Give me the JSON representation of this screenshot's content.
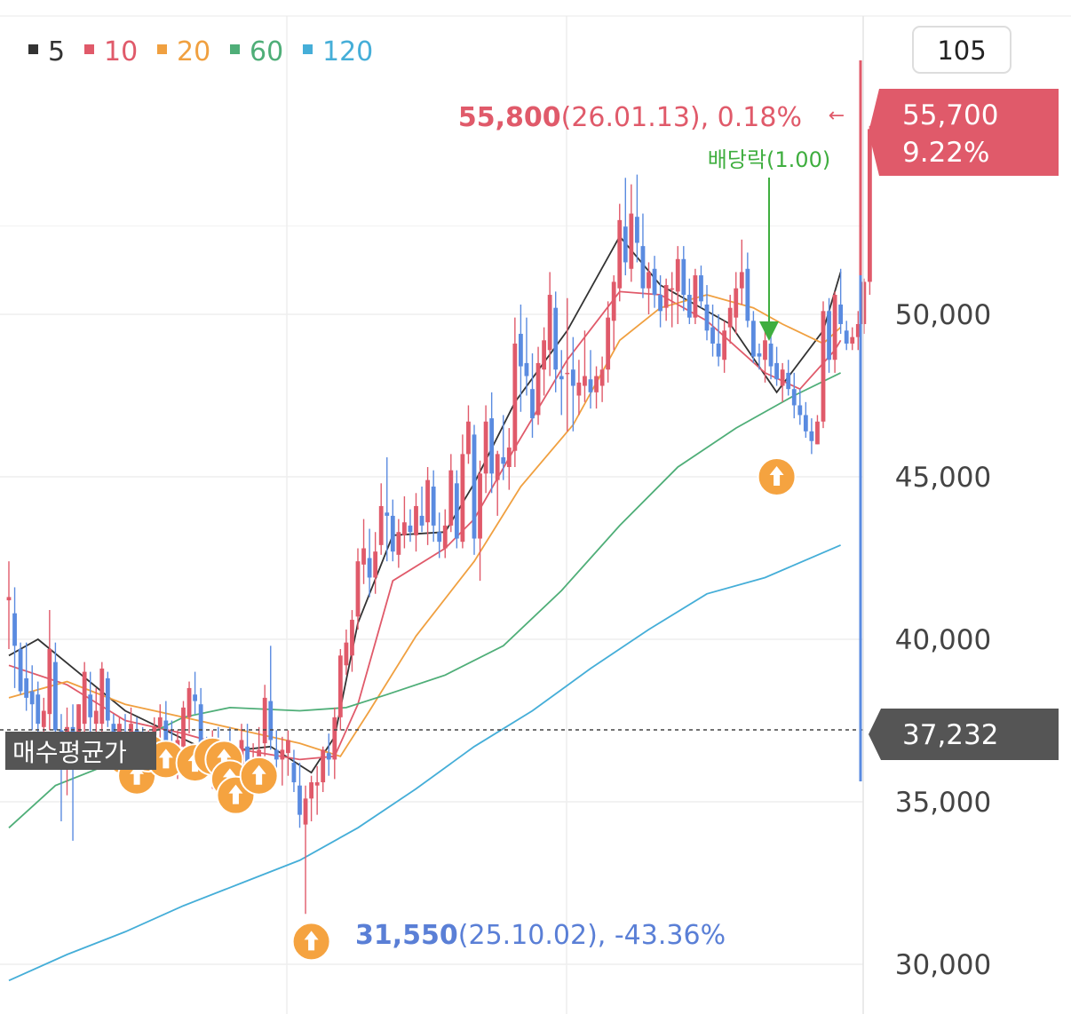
{
  "legend": [
    {
      "label": "5",
      "color": "#333333"
    },
    {
      "label": "10",
      "color": "#e05a6a"
    },
    {
      "label": "20",
      "color": "#f0a040"
    },
    {
      "label": "60",
      "color": "#4fae78"
    },
    {
      "label": "120",
      "color": "#45aed8"
    }
  ],
  "period_box": "105",
  "current_price": {
    "price": "55,700",
    "change": "9.22%"
  },
  "avg_buy_price": {
    "label": "매수평균가",
    "value": "37,232"
  },
  "high_annotation": {
    "price": "55,800",
    "detail": "(26.01.13), 0.18%",
    "arrow": "←"
  },
  "low_annotation": {
    "price": "31,550",
    "detail": "(25.10.02), -43.36%"
  },
  "dividend_annotation": {
    "label": "배당락(1.00)"
  },
  "y_axis_labels": [
    "50,000",
    "45,000",
    "40,000",
    "35,000",
    "30,000"
  ],
  "colors": {
    "up": "#e05a6a",
    "down": "#5a8be0",
    "buy_marker": "#f5a340",
    "dividend": "#3fae3f",
    "dark_badge": "#555555"
  },
  "chart_data": {
    "type": "candlestick",
    "y_range": [
      29500,
      59500
    ],
    "y_ticks": [
      30000,
      35000,
      40000,
      45000,
      50000
    ],
    "ohlc": [
      [
        41200,
        42400,
        39700,
        41300
      ],
      [
        40800,
        41600,
        38500,
        39800
      ],
      [
        39700,
        39900,
        38300,
        38400
      ],
      [
        38800,
        39900,
        37800,
        38200
      ],
      [
        38400,
        39200,
        37200,
        38000
      ],
      [
        38300,
        38700,
        36100,
        37400
      ],
      [
        37300,
        38200,
        36800,
        37800
      ],
      [
        37700,
        40900,
        37200,
        39700
      ],
      [
        39300,
        39900,
        36900,
        37200
      ],
      [
        37200,
        37700,
        34400,
        37100
      ],
      [
        37000,
        37900,
        35200,
        37300
      ],
      [
        37300,
        38000,
        33800,
        36900
      ],
      [
        36900,
        38000,
        36800,
        38000
      ],
      [
        37400,
        39300,
        37100,
        39000
      ],
      [
        38300,
        39000,
        36800,
        37600
      ],
      [
        37400,
        38500,
        36600,
        37800
      ],
      [
        37400,
        39300,
        36500,
        39100
      ],
      [
        38800,
        39000,
        37300,
        37500
      ],
      [
        37400,
        37700,
        36300,
        36900
      ],
      [
        36900,
        37600,
        35900,
        37400
      ],
      [
        37100,
        37700,
        36200,
        37000
      ],
      [
        37100,
        37900,
        36100,
        37400
      ],
      [
        37200,
        37600,
        36000,
        36700
      ],
      [
        36700,
        37300,
        35900,
        36200
      ],
      [
        36000,
        37200,
        35600,
        37000
      ],
      [
        36900,
        37600,
        35700,
        37300
      ],
      [
        37300,
        38000,
        36300,
        37600
      ],
      [
        37500,
        38100,
        36700,
        36800
      ],
      [
        36800,
        37500,
        35800,
        36400
      ],
      [
        36300,
        37200,
        35700,
        36900
      ],
      [
        36700,
        38100,
        36200,
        37900
      ],
      [
        37600,
        38700,
        37100,
        38500
      ],
      [
        38300,
        39000,
        37700,
        38100
      ],
      [
        38000,
        38500,
        36400,
        36800
      ],
      [
        36700,
        37000,
        35900,
        36000
      ],
      [
        35900,
        37200,
        35400,
        36900
      ],
      [
        36800,
        37300,
        35700,
        36000
      ],
      [
        36000,
        36900,
        35000,
        36500
      ],
      [
        36400,
        37300,
        35800,
        36000
      ],
      [
        36000,
        36500,
        35400,
        36100
      ],
      [
        36000,
        37400,
        35800,
        36900
      ],
      [
        36700,
        37400,
        35900,
        36200
      ],
      [
        36000,
        36800,
        35400,
        36300
      ],
      [
        36300,
        37300,
        36000,
        36600
      ],
      [
        36800,
        38600,
        36400,
        38200
      ],
      [
        38100,
        39800,
        36600,
        36900
      ],
      [
        36600,
        37200,
        36000,
        36300
      ],
      [
        36300,
        37000,
        35500,
        36600
      ],
      [
        36500,
        37200,
        35800,
        36900
      ],
      [
        36200,
        36600,
        35300,
        35600
      ],
      [
        35500,
        36200,
        34200,
        34600
      ],
      [
        34300,
        35500,
        31550,
        35100
      ],
      [
        35100,
        35800,
        34400,
        35600
      ],
      [
        35500,
        36100,
        34600,
        35600
      ],
      [
        35600,
        36700,
        35300,
        36600
      ],
      [
        36500,
        37100,
        35800,
        36300
      ],
      [
        36300,
        37900,
        35700,
        37600
      ],
      [
        37600,
        39700,
        37200,
        39500
      ],
      [
        39200,
        40300,
        38900,
        39900
      ],
      [
        39500,
        40900,
        39000,
        40600
      ],
      [
        40700,
        42800,
        40300,
        42400
      ],
      [
        42300,
        43700,
        41700,
        42800
      ],
      [
        42500,
        43400,
        41300,
        41900
      ],
      [
        41900,
        43300,
        41400,
        42700
      ],
      [
        42900,
        44800,
        42600,
        44100
      ],
      [
        43900,
        45600,
        42400,
        43800
      ],
      [
        43800,
        44300,
        42400,
        42700
      ],
      [
        42600,
        43700,
        42200,
        43300
      ],
      [
        43200,
        44400,
        42800,
        43600
      ],
      [
        43500,
        44000,
        43000,
        43300
      ],
      [
        43200,
        44500,
        42700,
        44100
      ],
      [
        43800,
        44700,
        43300,
        43500
      ],
      [
        43600,
        45300,
        42900,
        44900
      ],
      [
        44700,
        45200,
        43000,
        43500
      ],
      [
        43300,
        43900,
        42500,
        43000
      ],
      [
        42800,
        44000,
        42500,
        43500
      ],
      [
        43500,
        45700,
        43300,
        45200
      ],
      [
        44800,
        45200,
        42800,
        43100
      ],
      [
        43000,
        46300,
        42800,
        45700
      ],
      [
        45700,
        47200,
        45400,
        46700
      ],
      [
        46300,
        46600,
        42600,
        43100
      ],
      [
        43100,
        45500,
        41800,
        45100
      ],
      [
        45100,
        47200,
        44500,
        46700
      ],
      [
        46800,
        47600,
        44500,
        45100
      ],
      [
        44900,
        45800,
        43800,
        45700
      ],
      [
        45600,
        46900,
        44900,
        45400
      ],
      [
        45300,
        46500,
        44600,
        45900
      ],
      [
        45800,
        49900,
        45300,
        49100
      ],
      [
        49400,
        50300,
        47000,
        48400
      ],
      [
        48500,
        49900,
        47500,
        48100
      ],
      [
        47700,
        48800,
        46200,
        46800
      ],
      [
        46900,
        49000,
        46600,
        48500
      ],
      [
        48300,
        49600,
        47500,
        49200
      ],
      [
        48900,
        51300,
        48100,
        50600
      ],
      [
        50200,
        50700,
        47600,
        48300
      ],
      [
        48100,
        48900,
        46900,
        48000
      ],
      [
        48200,
        50500,
        46400,
        48200
      ],
      [
        48300,
        49300,
        46400,
        47800
      ],
      [
        47500,
        48600,
        46900,
        47900
      ],
      [
        47800,
        49500,
        47300,
        48100
      ],
      [
        48000,
        48900,
        47100,
        47600
      ],
      [
        47600,
        48400,
        47100,
        48100
      ],
      [
        47800,
        48700,
        47300,
        48300
      ],
      [
        48300,
        50400,
        47900,
        49900
      ],
      [
        49800,
        51200,
        48900,
        51000
      ],
      [
        50800,
        53400,
        50400,
        52900
      ],
      [
        52700,
        54200,
        51200,
        51600
      ],
      [
        51400,
        54000,
        51000,
        53100
      ],
      [
        53000,
        54300,
        51600,
        52200
      ],
      [
        52100,
        53100,
        50500,
        50800
      ],
      [
        50800,
        51600,
        50000,
        51300
      ],
      [
        51400,
        51800,
        50200,
        50600
      ],
      [
        50600,
        51200,
        49600,
        50100
      ],
      [
        50200,
        51100,
        49800,
        50900
      ],
      [
        50800,
        51300,
        49600,
        50800
      ],
      [
        50700,
        52100,
        49700,
        51700
      ],
      [
        51700,
        52100,
        50100,
        50600
      ],
      [
        50600,
        51100,
        49700,
        49900
      ],
      [
        49900,
        51400,
        49700,
        51200
      ],
      [
        51200,
        51500,
        50200,
        50400
      ],
      [
        50300,
        50900,
        49200,
        49500
      ],
      [
        49600,
        50300,
        48700,
        49100
      ],
      [
        49100,
        50000,
        48400,
        48700
      ],
      [
        48600,
        49800,
        48200,
        49500
      ],
      [
        49600,
        50600,
        49100,
        50200
      ],
      [
        49900,
        51300,
        49400,
        50800
      ],
      [
        50800,
        52300,
        50300,
        51300
      ],
      [
        51400,
        51900,
        49600,
        49800
      ],
      [
        49800,
        50100,
        48500,
        48700
      ],
      [
        48800,
        49100,
        48300,
        48700
      ],
      [
        48600,
        49700,
        47900,
        49200
      ],
      [
        49100,
        49600,
        48000,
        48400
      ],
      [
        48500,
        49000,
        47800,
        48000
      ],
      [
        47800,
        48500,
        47300,
        48300
      ],
      [
        48200,
        48600,
        47500,
        47700
      ],
      [
        47700,
        48200,
        46800,
        47200
      ],
      [
        47200,
        47700,
        46600,
        46900
      ],
      [
        46900,
        47300,
        46200,
        46400
      ],
      [
        46400,
        46800,
        45700,
        46100
      ],
      [
        46000,
        46900,
        46000,
        46700
      ],
      [
        46700,
        50400,
        46500,
        50100
      ],
      [
        50100,
        50500,
        48200,
        48600
      ],
      [
        48600,
        50700,
        48200,
        50600
      ],
      [
        50300,
        51400,
        49400,
        49700
      ],
      [
        49500,
        49800,
        48900,
        49100
      ],
      [
        49100,
        49600,
        48900,
        49300
      ],
      [
        49300,
        50100,
        48900,
        49700
      ],
      [
        49700,
        51100,
        49400,
        51000
      ],
      [
        51000,
        55800,
        50600,
        55700
      ]
    ],
    "ma_series": [
      {
        "name": "5",
        "values": [
          [
            0,
            39500
          ],
          [
            5,
            40000
          ],
          [
            20,
            37800
          ],
          [
            35,
            36500
          ],
          [
            45,
            36700
          ],
          [
            52,
            35900
          ],
          [
            56,
            37000
          ],
          [
            60,
            40500
          ],
          [
            66,
            43200
          ],
          [
            75,
            43300
          ],
          [
            80,
            44800
          ],
          [
            87,
            47300
          ],
          [
            96,
            49500
          ],
          [
            105,
            52400
          ],
          [
            112,
            50900
          ],
          [
            118,
            50300
          ],
          [
            124,
            49700
          ],
          [
            132,
            47600
          ],
          [
            140,
            49500
          ],
          [
            143,
            51300
          ]
        ]
      },
      {
        "name": "10",
        "values": [
          [
            0,
            39200
          ],
          [
            10,
            38600
          ],
          [
            20,
            37500
          ],
          [
            30,
            37100
          ],
          [
            40,
            36600
          ],
          [
            50,
            36300
          ],
          [
            56,
            36400
          ],
          [
            60,
            38000
          ],
          [
            66,
            41800
          ],
          [
            75,
            42800
          ],
          [
            80,
            43700
          ],
          [
            87,
            45900
          ],
          [
            96,
            48600
          ],
          [
            105,
            50700
          ],
          [
            112,
            50600
          ],
          [
            120,
            49800
          ],
          [
            130,
            48200
          ],
          [
            136,
            47700
          ],
          [
            142,
            48900
          ],
          [
            143,
            49200
          ]
        ]
      },
      {
        "name": "20",
        "values": [
          [
            0,
            38200
          ],
          [
            10,
            38700
          ],
          [
            20,
            38000
          ],
          [
            30,
            37600
          ],
          [
            40,
            37200
          ],
          [
            50,
            36800
          ],
          [
            57,
            36400
          ],
          [
            62,
            37800
          ],
          [
            70,
            40100
          ],
          [
            80,
            42400
          ],
          [
            88,
            44700
          ],
          [
            97,
            46600
          ],
          [
            105,
            49200
          ],
          [
            112,
            50200
          ],
          [
            120,
            50600
          ],
          [
            128,
            50200
          ],
          [
            133,
            49700
          ],
          [
            140,
            49100
          ],
          [
            143,
            49600
          ]
        ]
      },
      {
        "name": "60",
        "values": [
          [
            0,
            34200
          ],
          [
            8,
            35500
          ],
          [
            15,
            36000
          ],
          [
            22,
            36900
          ],
          [
            30,
            37600
          ],
          [
            38,
            37900
          ],
          [
            50,
            37800
          ],
          [
            58,
            37900
          ],
          [
            65,
            38300
          ],
          [
            75,
            38900
          ],
          [
            85,
            39800
          ],
          [
            95,
            41500
          ],
          [
            105,
            43500
          ],
          [
            115,
            45300
          ],
          [
            125,
            46500
          ],
          [
            135,
            47500
          ],
          [
            143,
            48200
          ]
        ]
      },
      {
        "name": "120",
        "values": [
          [
            0,
            29500
          ],
          [
            10,
            30300
          ],
          [
            20,
            31000
          ],
          [
            30,
            31800
          ],
          [
            40,
            32500
          ],
          [
            50,
            33200
          ],
          [
            60,
            34200
          ],
          [
            70,
            35400
          ],
          [
            80,
            36700
          ],
          [
            90,
            37800
          ],
          [
            100,
            39100
          ],
          [
            110,
            40300
          ],
          [
            120,
            41400
          ],
          [
            130,
            41900
          ],
          [
            143,
            42900
          ]
        ]
      }
    ],
    "buy_markers": [
      [
        20,
        36400
      ],
      [
        22,
        35800
      ],
      [
        24,
        36500
      ],
      [
        27,
        36300
      ],
      [
        32,
        36200
      ],
      [
        35,
        36400
      ],
      [
        37,
        36300
      ],
      [
        38,
        35700
      ],
      [
        39,
        35200
      ],
      [
        43,
        35800
      ],
      [
        52,
        30700
      ],
      [
        132,
        45000
      ]
    ],
    "dividend_index": 130
  }
}
